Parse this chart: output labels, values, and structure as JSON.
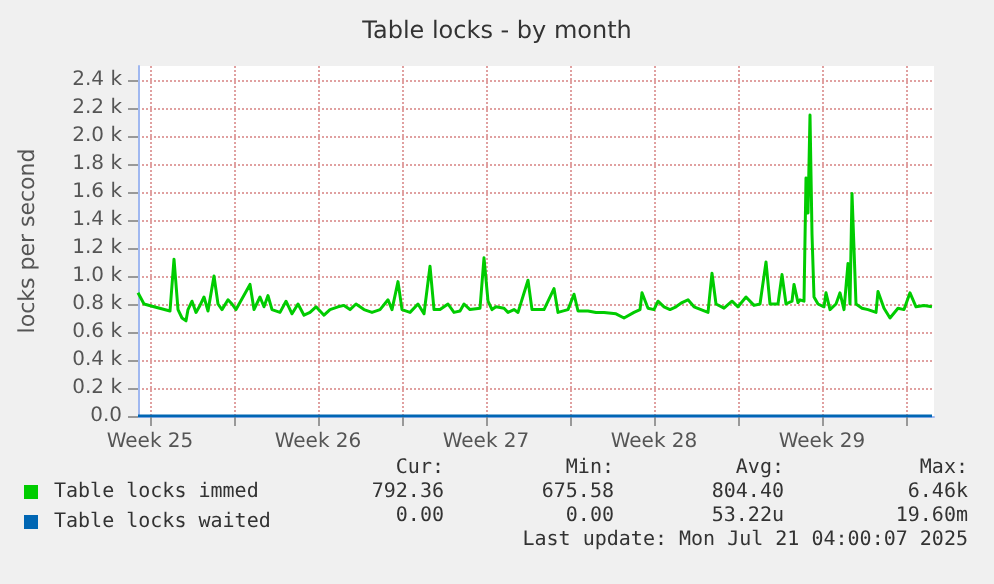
{
  "chart_data": {
    "type": "line",
    "title": "Table locks - by month",
    "ylabel": "locks per second",
    "xlim": [
      "2025-06-18T00:00",
      "2025-07-21T04:00"
    ],
    "xticks": [
      {
        "value": "2025-06-18T12:00",
        "label": "Week 25"
      },
      {
        "value": "2025-06-22T00:00",
        "label": null
      },
      {
        "value": "2025-06-25T12:00",
        "label": "Week 26"
      },
      {
        "value": "2025-06-29T00:00",
        "label": null
      },
      {
        "value": "2025-07-02T12:00",
        "label": "Week 27"
      },
      {
        "value": "2025-07-06T00:00",
        "label": null
      },
      {
        "value": "2025-07-09T12:00",
        "label": "Week 28"
      },
      {
        "value": "2025-07-13T00:00",
        "label": null
      },
      {
        "value": "2025-07-16T12:00",
        "label": "Week 29"
      },
      {
        "value": "2025-07-20T00:00",
        "label": null
      }
    ],
    "ylim": [
      0,
      2500
    ],
    "yticks": [
      {
        "value": 0,
        "label": "0.0"
      },
      {
        "value": 200,
        "label": "0.2 k"
      },
      {
        "value": 400,
        "label": "0.4 k"
      },
      {
        "value": 600,
        "label": "0.6 k"
      },
      {
        "value": 800,
        "label": "0.8 k"
      },
      {
        "value": 1000,
        "label": "1.0 k"
      },
      {
        "value": 1200,
        "label": "1.2 k"
      },
      {
        "value": 1400,
        "label": "1.4 k"
      },
      {
        "value": 1600,
        "label": "1.6 k"
      },
      {
        "value": 1800,
        "label": "1.8 k"
      },
      {
        "value": 2000,
        "label": "2.0 k"
      },
      {
        "value": 2200,
        "label": "2.2 k"
      },
      {
        "value": 2400,
        "label": "2.4 k"
      }
    ],
    "grid": true,
    "legend": "bottom left",
    "marker": "none",
    "line_style": "solid",
    "series": [
      {
        "name": "Table locks immed",
        "color": "#00cc00",
        "x": [
          "2025-06-18T00:00",
          "2025-06-18T06:00",
          "2025-06-18T16:00",
          "2025-06-19T08:00",
          "2025-06-19T12:00",
          "2025-06-19T16:00",
          "2025-06-19T20:00",
          "2025-06-20T00:00",
          "2025-06-20T02:00",
          "2025-06-20T06:00",
          "2025-06-20T10:00",
          "2025-06-20T14:00",
          "2025-06-20T18:00",
          "2025-06-20T22:00",
          "2025-06-21T04:00",
          "2025-06-21T08:00",
          "2025-06-21T12:00",
          "2025-06-21T18:00",
          "2025-06-21T22:00",
          "2025-06-22T02:00",
          "2025-06-22T16:00",
          "2025-06-22T20:00",
          "2025-06-23T02:00",
          "2025-06-23T06:00",
          "2025-06-23T10:00",
          "2025-06-23T14:00",
          "2025-06-23T22:00",
          "2025-06-24T04:00",
          "2025-06-24T10:00",
          "2025-06-24T16:00",
          "2025-06-24T22:00",
          "2025-06-25T04:00",
          "2025-06-25T10:00",
          "2025-06-25T18:00",
          "2025-06-26T00:00",
          "2025-06-26T08:00",
          "2025-06-26T14:00",
          "2025-06-26T20:00",
          "2025-06-27T02:00",
          "2025-06-27T10:00",
          "2025-06-27T18:00",
          "2025-06-28T02:00",
          "2025-06-28T10:00",
          "2025-06-28T14:00",
          "2025-06-28T20:00",
          "2025-06-29T00:00",
          "2025-06-29T08:00",
          "2025-06-29T16:00",
          "2025-06-29T22:00",
          "2025-06-30T04:00",
          "2025-06-30T08:00",
          "2025-06-30T14:00",
          "2025-06-30T22:00",
          "2025-07-01T04:00",
          "2025-07-01T10:00",
          "2025-07-01T14:00",
          "2025-07-01T20:00",
          "2025-07-02T06:00",
          "2025-07-02T10:00",
          "2025-07-02T14:00",
          "2025-07-02T18:00",
          "2025-07-02T22:00",
          "2025-07-03T06:00",
          "2025-07-03T10:00",
          "2025-07-03T16:00",
          "2025-07-03T20:00",
          "2025-07-04T06:00",
          "2025-07-04T10:00",
          "2025-07-04T22:00",
          "2025-07-05T08:00",
          "2025-07-05T12:00",
          "2025-07-05T22:00",
          "2025-07-06T04:00",
          "2025-07-06T08:00",
          "2025-07-06T18:00",
          "2025-07-07T02:00",
          "2025-07-07T10:00",
          "2025-07-07T22:00",
          "2025-07-08T06:00",
          "2025-07-08T16:00",
          "2025-07-08T22:00",
          "2025-07-09T00:00",
          "2025-07-09T06:00",
          "2025-07-09T12:00",
          "2025-07-09T16:00",
          "2025-07-09T22:00",
          "2025-07-10T04:00",
          "2025-07-10T10:00",
          "2025-07-10T16:00",
          "2025-07-10T22:00",
          "2025-07-11T04:00",
          "2025-07-11T18:00",
          "2025-07-11T22:00",
          "2025-07-12T02:00",
          "2025-07-12T10:00",
          "2025-07-12T18:00",
          "2025-07-13T00:00",
          "2025-07-13T08:00",
          "2025-07-13T16:00",
          "2025-07-13T22:00",
          "2025-07-14T04:00",
          "2025-07-14T08:00",
          "2025-07-14T16:00",
          "2025-07-14T20:00",
          "2025-07-15T00:00",
          "2025-07-15T06:00",
          "2025-07-15T08:00",
          "2025-07-15T12:00",
          "2025-07-15T14:00",
          "2025-07-15T18:00",
          "2025-07-15T20:00",
          "2025-07-15T22:00",
          "2025-07-16T00:00",
          "2025-07-16T02:00",
          "2025-07-16T04:00",
          "2025-07-16T08:00",
          "2025-07-16T14:00",
          "2025-07-16T16:00",
          "2025-07-16T20:00",
          "2025-07-17T02:00",
          "2025-07-17T06:00",
          "2025-07-17T10:00",
          "2025-07-17T14:00",
          "2025-07-17T16:00",
          "2025-07-17T18:00",
          "2025-07-17T22:00",
          "2025-07-18T04:00",
          "2025-07-18T10:00",
          "2025-07-18T18:00",
          "2025-07-18T20:00",
          "2025-07-19T02:00",
          "2025-07-19T08:00",
          "2025-07-19T16:00",
          "2025-07-19T22:00",
          "2025-07-20T04:00",
          "2025-07-20T10:00",
          "2025-07-20T18:00",
          "2025-07-21T02:00"
        ],
        "values": [
          880,
          800,
          780,
          750,
          1120,
          760,
          700,
          680,
          760,
          820,
          740,
          790,
          850,
          750,
          1000,
          800,
          760,
          830,
          800,
          760,
          940,
          760,
          850,
          780,
          860,
          760,
          740,
          820,
          730,
          800,
          720,
          740,
          780,
          720,
          760,
          780,
          790,
          760,
          800,
          760,
          740,
          760,
          830,
          760,
          960,
          760,
          740,
          800,
          730,
          1070,
          760,
          760,
          800,
          740,
          750,
          800,
          760,
          770,
          1130,
          820,
          760,
          780,
          770,
          740,
          760,
          740,
          970,
          760,
          760,
          910,
          740,
          760,
          870,
          750,
          750,
          740,
          740,
          730,
          700,
          740,
          760,
          880,
          770,
          760,
          820,
          780,
          760,
          780,
          810,
          830,
          780,
          740,
          1020,
          800,
          770,
          820,
          780,
          850,
          790,
          800,
          1100,
          800,
          800,
          1010,
          800,
          820,
          940,
          810,
          830,
          820,
          1700,
          1450,
          2150,
          1300,
          850,
          800,
          780,
          880,
          760,
          800,
          880,
          760,
          1090,
          800,
          1590,
          800,
          770,
          760,
          740,
          890,
          770,
          700,
          770,
          760,
          880,
          780,
          790,
          780
        ]
      },
      {
        "name": "Table locks waited",
        "color": "#0066b3",
        "x": [
          "2025-06-18T00:00",
          "2025-07-21T02:00"
        ],
        "values": [
          0,
          0
        ]
      }
    ],
    "annotations": [
      "Cur:",
      "Min:",
      "Avg:",
      "Max:",
      "792.36",
      "675.58",
      "804.40",
      "6.46k",
      "0.00",
      "0.00",
      "53.22u",
      "19.60m",
      "Last update: Mon Jul 21 04:00:07 2025"
    ]
  }
}
